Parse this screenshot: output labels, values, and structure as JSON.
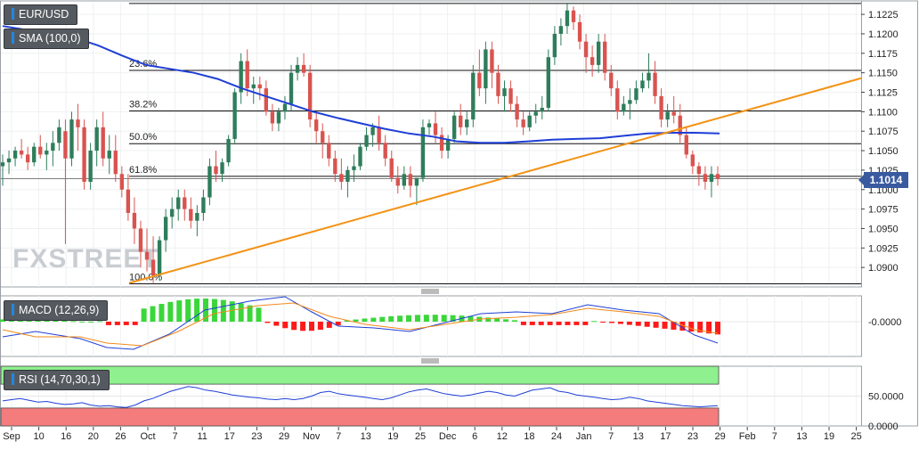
{
  "symbol": "EUR/USD",
  "indicators": {
    "sma_label": "SMA (100,0)",
    "macd_label": "MACD (12,26,9)",
    "rsi_label": "RSI (14,70,30,1)"
  },
  "current_price": "1.1014",
  "watermark": "FXSTREET",
  "colors": {
    "bull": "#2e7d5b",
    "bear": "#d9534f",
    "sma": "#1f3fd6",
    "trendline": "#f39214",
    "macd_hist_pos": "#3ad63a",
    "macd_hist_neg": "#ff1a1a",
    "rsi_overbought_zone": "#8ef08e",
    "rsi_oversold_zone": "#f47c7c",
    "price_tag": "#3a5aa0"
  },
  "chart_data": [
    {
      "type": "candlestick",
      "panel": "price",
      "y_tick_labels": [
        "1.1225",
        "1.1200",
        "1.1175",
        "1.1150",
        "1.1125",
        "1.1100",
        "1.1075",
        "1.1050",
        "1.1025",
        "1.1000",
        "1.0975",
        "1.0950",
        "1.0925",
        "1.0900"
      ],
      "ylim": [
        1.0875,
        1.124
      ],
      "x_tick_labels": [
        "Sep",
        "10",
        "16",
        "20",
        "26",
        "Oct",
        "7",
        "11",
        "17",
        "23",
        "29",
        "Nov",
        "7",
        "13",
        "19",
        "25",
        "Dec",
        "6",
        "12",
        "18",
        "24",
        "Jan",
        "7",
        "13",
        "17",
        "23",
        "29",
        "Feb",
        "7",
        "13",
        "19",
        "25"
      ],
      "fib_levels": [
        {
          "label": "23.6%",
          "value": 1.1153
        },
        {
          "label": "38.2%",
          "value": 1.1101
        },
        {
          "label": "50.0%",
          "value": 1.1059
        },
        {
          "label": "61.8%",
          "value": 1.1017
        },
        {
          "label": "100.0%",
          "value": 1.0879
        }
      ],
      "top_level": 1.1239,
      "candles_ohlc": [
        [
          1.103,
          1.1045,
          1.1005,
          1.1035
        ],
        [
          1.1035,
          1.105,
          1.102,
          1.104
        ],
        [
          1.104,
          1.1055,
          1.103,
          1.105
        ],
        [
          1.105,
          1.1065,
          1.104,
          1.1045
        ],
        [
          1.1045,
          1.1055,
          1.1025,
          1.1035
        ],
        [
          1.1035,
          1.106,
          1.103,
          1.1055
        ],
        [
          1.1055,
          1.107,
          1.104,
          1.1045
        ],
        [
          1.1045,
          1.106,
          1.1025,
          1.105
        ],
        [
          1.105,
          1.1075,
          1.103,
          1.106
        ],
        [
          1.106,
          1.109,
          1.105,
          1.108
        ],
        [
          1.1075,
          1.109,
          1.093,
          1.104
        ],
        [
          1.104,
          1.11,
          1.103,
          1.109
        ],
        [
          1.109,
          1.111,
          1.105,
          1.108
        ],
        [
          1.108,
          1.109,
          1.1,
          1.101
        ],
        [
          1.101,
          1.106,
          1.1,
          1.105
        ],
        [
          1.105,
          1.109,
          1.103,
          1.108
        ],
        [
          1.108,
          1.11,
          1.103,
          1.104
        ],
        [
          1.104,
          1.107,
          1.102,
          1.105
        ],
        [
          1.105,
          1.107,
          1.101,
          1.102
        ],
        [
          1.102,
          1.103,
          1.099,
          1.1
        ],
        [
          1.1,
          1.102,
          1.096,
          1.097
        ],
        [
          1.097,
          1.099,
          1.093,
          1.095
        ],
        [
          1.095,
          1.096,
          1.09,
          1.092
        ],
        [
          1.092,
          1.095,
          1.0895,
          1.091
        ],
        [
          1.091,
          1.094,
          1.088,
          1.089
        ],
        [
          1.089,
          1.094,
          1.0883,
          1.0935
        ],
        [
          1.0935,
          1.0975,
          1.092,
          1.0965
        ],
        [
          1.0965,
          1.099,
          1.095,
          1.0975
        ],
        [
          1.0975,
          1.1,
          1.096,
          1.099
        ],
        [
          1.099,
          1.1,
          1.096,
          1.0975
        ],
        [
          1.0975,
          1.099,
          1.095,
          1.096
        ],
        [
          1.096,
          1.098,
          1.094,
          1.097
        ],
        [
          1.097,
          1.1,
          1.096,
          1.099
        ],
        [
          1.099,
          1.104,
          1.098,
          1.103
        ],
        [
          1.103,
          1.105,
          1.101,
          1.102
        ],
        [
          1.102,
          1.104,
          1.101,
          1.1035
        ],
        [
          1.1035,
          1.107,
          1.103,
          1.1065
        ],
        [
          1.1065,
          1.113,
          1.106,
          1.1125
        ],
        [
          1.1125,
          1.1175,
          1.111,
          1.1165
        ],
        [
          1.1165,
          1.118,
          1.112,
          1.113
        ],
        [
          1.113,
          1.1145,
          1.111,
          1.1135
        ],
        [
          1.1135,
          1.1145,
          1.1115,
          1.113
        ],
        [
          1.113,
          1.114,
          1.1095,
          1.11
        ],
        [
          1.11,
          1.111,
          1.1075,
          1.1085
        ],
        [
          1.1085,
          1.1105,
          1.1075,
          1.11
        ],
        [
          1.11,
          1.112,
          1.109,
          1.111
        ],
        [
          1.111,
          1.116,
          1.11,
          1.115
        ],
        [
          1.115,
          1.117,
          1.114,
          1.116
        ],
        [
          1.116,
          1.1175,
          1.1145,
          1.115
        ],
        [
          1.115,
          1.116,
          1.108,
          1.109
        ],
        [
          1.109,
          1.11,
          1.106,
          1.1075
        ],
        [
          1.1075,
          1.1085,
          1.104,
          1.106
        ],
        [
          1.106,
          1.107,
          1.103,
          1.104
        ],
        [
          1.104,
          1.105,
          1.101,
          1.102
        ],
        [
          1.102,
          1.104,
          1.1,
          1.101
        ],
        [
          1.101,
          1.103,
          1.099,
          1.1025
        ],
        [
          1.1025,
          1.1045,
          1.101,
          1.103
        ],
        [
          1.103,
          1.106,
          1.1025,
          1.1055
        ],
        [
          1.1055,
          1.108,
          1.105,
          1.107
        ],
        [
          1.107,
          1.1085,
          1.1055,
          1.108
        ],
        [
          1.108,
          1.1095,
          1.105,
          1.106
        ],
        [
          1.106,
          1.107,
          1.103,
          1.104
        ],
        [
          1.104,
          1.105,
          1.101,
          1.1015
        ],
        [
          1.1015,
          1.103,
          1.0995,
          1.1005
        ],
        [
          1.1005,
          1.103,
          1.1,
          1.102
        ],
        [
          1.102,
          1.103,
          1.099,
          1.1005
        ],
        [
          1.1005,
          1.101,
          1.098,
          1.1015
        ],
        [
          1.1015,
          1.109,
          1.101,
          1.108
        ],
        [
          1.108,
          1.109,
          1.107,
          1.1085
        ],
        [
          1.1085,
          1.11,
          1.106,
          1.107
        ],
        [
          1.107,
          1.108,
          1.104,
          1.105
        ],
        [
          1.105,
          1.107,
          1.104,
          1.1065
        ],
        [
          1.1065,
          1.11,
          1.106,
          1.1095
        ],
        [
          1.1095,
          1.111,
          1.107,
          1.108
        ],
        [
          1.108,
          1.11,
          1.107,
          1.109
        ],
        [
          1.109,
          1.116,
          1.108,
          1.115
        ],
        [
          1.115,
          1.118,
          1.112,
          1.113
        ],
        [
          1.113,
          1.119,
          1.111,
          1.118
        ],
        [
          1.118,
          1.119,
          1.113,
          1.115
        ],
        [
          1.115,
          1.116,
          1.111,
          1.112
        ],
        [
          1.112,
          1.114,
          1.11,
          1.113
        ],
        [
          1.113,
          1.114,
          1.11,
          1.111
        ],
        [
          1.111,
          1.112,
          1.108,
          1.109
        ],
        [
          1.109,
          1.11,
          1.107,
          1.108
        ],
        [
          1.108,
          1.11,
          1.1075,
          1.1095
        ],
        [
          1.1095,
          1.111,
          1.1085,
          1.11
        ],
        [
          1.11,
          1.112,
          1.109,
          1.1105
        ],
        [
          1.1105,
          1.118,
          1.11,
          1.117
        ],
        [
          1.117,
          1.121,
          1.116,
          1.12
        ],
        [
          1.12,
          1.122,
          1.1185,
          1.121
        ],
        [
          1.121,
          1.124,
          1.12,
          1.123
        ],
        [
          1.123,
          1.1235,
          1.1205,
          1.1215
        ],
        [
          1.1215,
          1.1225,
          1.118,
          1.119
        ],
        [
          1.119,
          1.12,
          1.115,
          1.117
        ],
        [
          1.117,
          1.1185,
          1.1145,
          1.116
        ],
        [
          1.116,
          1.12,
          1.115,
          1.119
        ],
        [
          1.119,
          1.12,
          1.114,
          1.115
        ],
        [
          1.115,
          1.116,
          1.112,
          1.113
        ],
        [
          1.113,
          1.114,
          1.109,
          1.11
        ],
        [
          1.11,
          1.112,
          1.1095,
          1.111
        ],
        [
          1.111,
          1.113,
          1.109,
          1.1115
        ],
        [
          1.1115,
          1.114,
          1.111,
          1.113
        ],
        [
          1.113,
          1.115,
          1.1125,
          1.114
        ],
        [
          1.114,
          1.1175,
          1.113,
          1.115
        ],
        [
          1.115,
          1.1165,
          1.111,
          1.112
        ],
        [
          1.112,
          1.113,
          1.108,
          1.109
        ],
        [
          1.109,
          1.111,
          1.108,
          1.11
        ],
        [
          1.11,
          1.112,
          1.1085,
          1.1095
        ],
        [
          1.1095,
          1.111,
          1.106,
          1.107
        ],
        [
          1.107,
          1.108,
          1.104,
          1.1045
        ],
        [
          1.1045,
          1.105,
          1.102,
          1.103
        ],
        [
          1.103,
          1.1035,
          1.1005,
          1.102
        ],
        [
          1.102,
          1.103,
          1.1,
          1.101
        ],
        [
          1.101,
          1.103,
          1.099,
          1.102
        ],
        [
          1.102,
          1.103,
          1.1005,
          1.1014
        ]
      ],
      "sma_100": [
        1.121,
        1.1205,
        1.12,
        1.1195,
        1.1185,
        1.1172,
        1.116,
        1.1155,
        1.115,
        1.1142,
        1.113,
        1.112,
        1.111,
        1.11,
        1.1092,
        1.1085,
        1.1078,
        1.1072,
        1.1068,
        1.1062,
        1.106,
        1.106,
        1.1062,
        1.1064,
        1.1065,
        1.1066,
        1.1069,
        1.1072,
        1.1073,
        1.1073,
        1.1072
      ],
      "trendline": {
        "from": 1.088,
        "to": 1.1143
      }
    },
    {
      "type": "bar+line",
      "panel": "MACD",
      "y_tick_labels": [
        "-0.0000"
      ],
      "histogram_sign_pattern": "+ then - then + then - then + then -",
      "series": []
    },
    {
      "type": "line",
      "panel": "RSI",
      "y_tick_labels": [
        "50.0000",
        "0.0000"
      ],
      "ylim": [
        0,
        100
      ],
      "overbought": 70,
      "oversold": 30,
      "values": [
        42,
        44,
        46,
        43,
        40,
        41,
        38,
        36,
        37,
        39,
        35,
        33,
        34,
        32,
        31,
        35,
        42,
        46,
        52,
        58,
        62,
        66,
        64,
        60,
        58,
        55,
        52,
        50,
        48,
        47,
        45,
        44,
        46,
        44,
        46,
        50,
        56,
        58,
        54,
        52,
        50,
        48,
        46,
        44,
        47,
        52,
        57,
        60,
        62,
        58,
        54,
        52,
        50,
        52,
        55,
        58,
        56,
        52,
        50,
        55,
        60,
        62,
        64,
        58,
        56,
        52,
        50,
        48,
        46,
        44,
        45,
        48,
        46,
        42,
        40,
        38,
        36,
        34,
        33,
        32,
        33,
        34
      ]
    }
  ]
}
